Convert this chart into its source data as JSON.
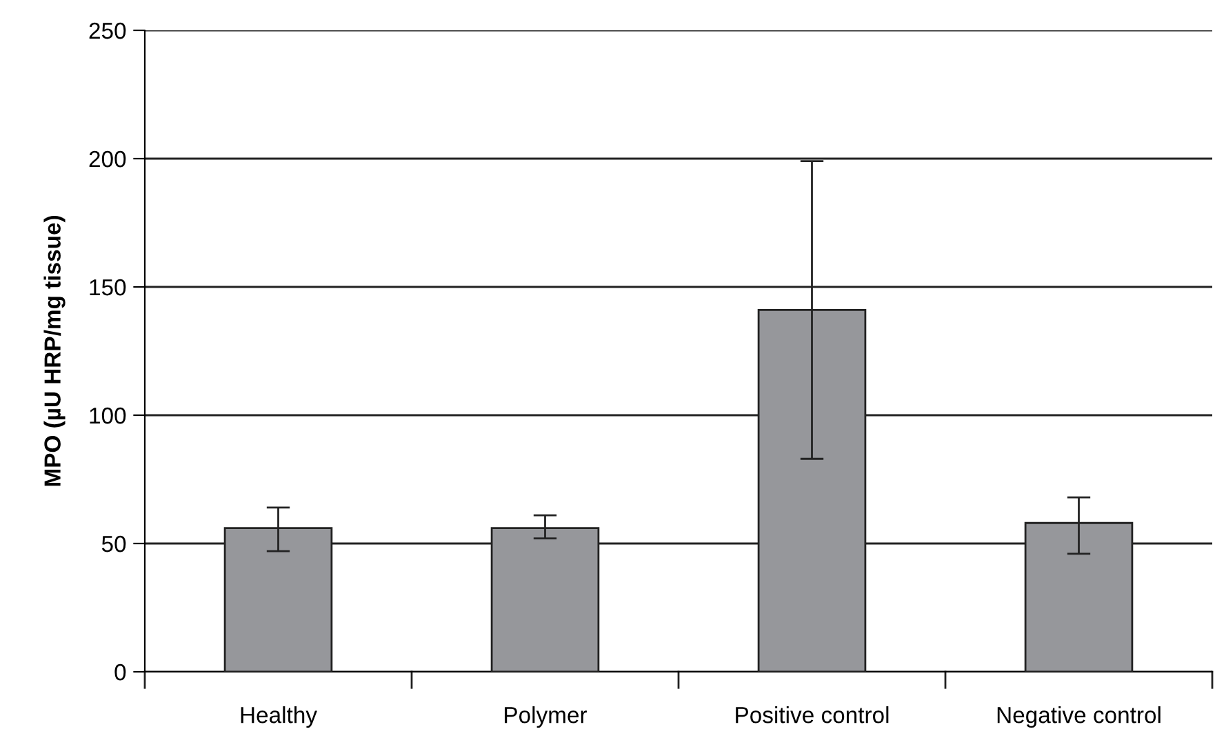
{
  "chart_data": {
    "type": "bar",
    "ylabel": "MPO (µU HRP/mg tissue)",
    "categories": [
      "Healthy",
      "Polymer",
      "Positive control",
      "Negative control"
    ],
    "values": [
      56,
      56,
      141,
      58
    ],
    "errors": [
      [
        47,
        64
      ],
      [
        52,
        61
      ],
      [
        83,
        199
      ],
      [
        46,
        68
      ]
    ],
    "color": "#96979b",
    "ylim": [
      0,
      250
    ],
    "yticks": [
      0,
      50,
      100,
      150,
      200,
      250
    ],
    "grid": "y",
    "legend": false
  }
}
